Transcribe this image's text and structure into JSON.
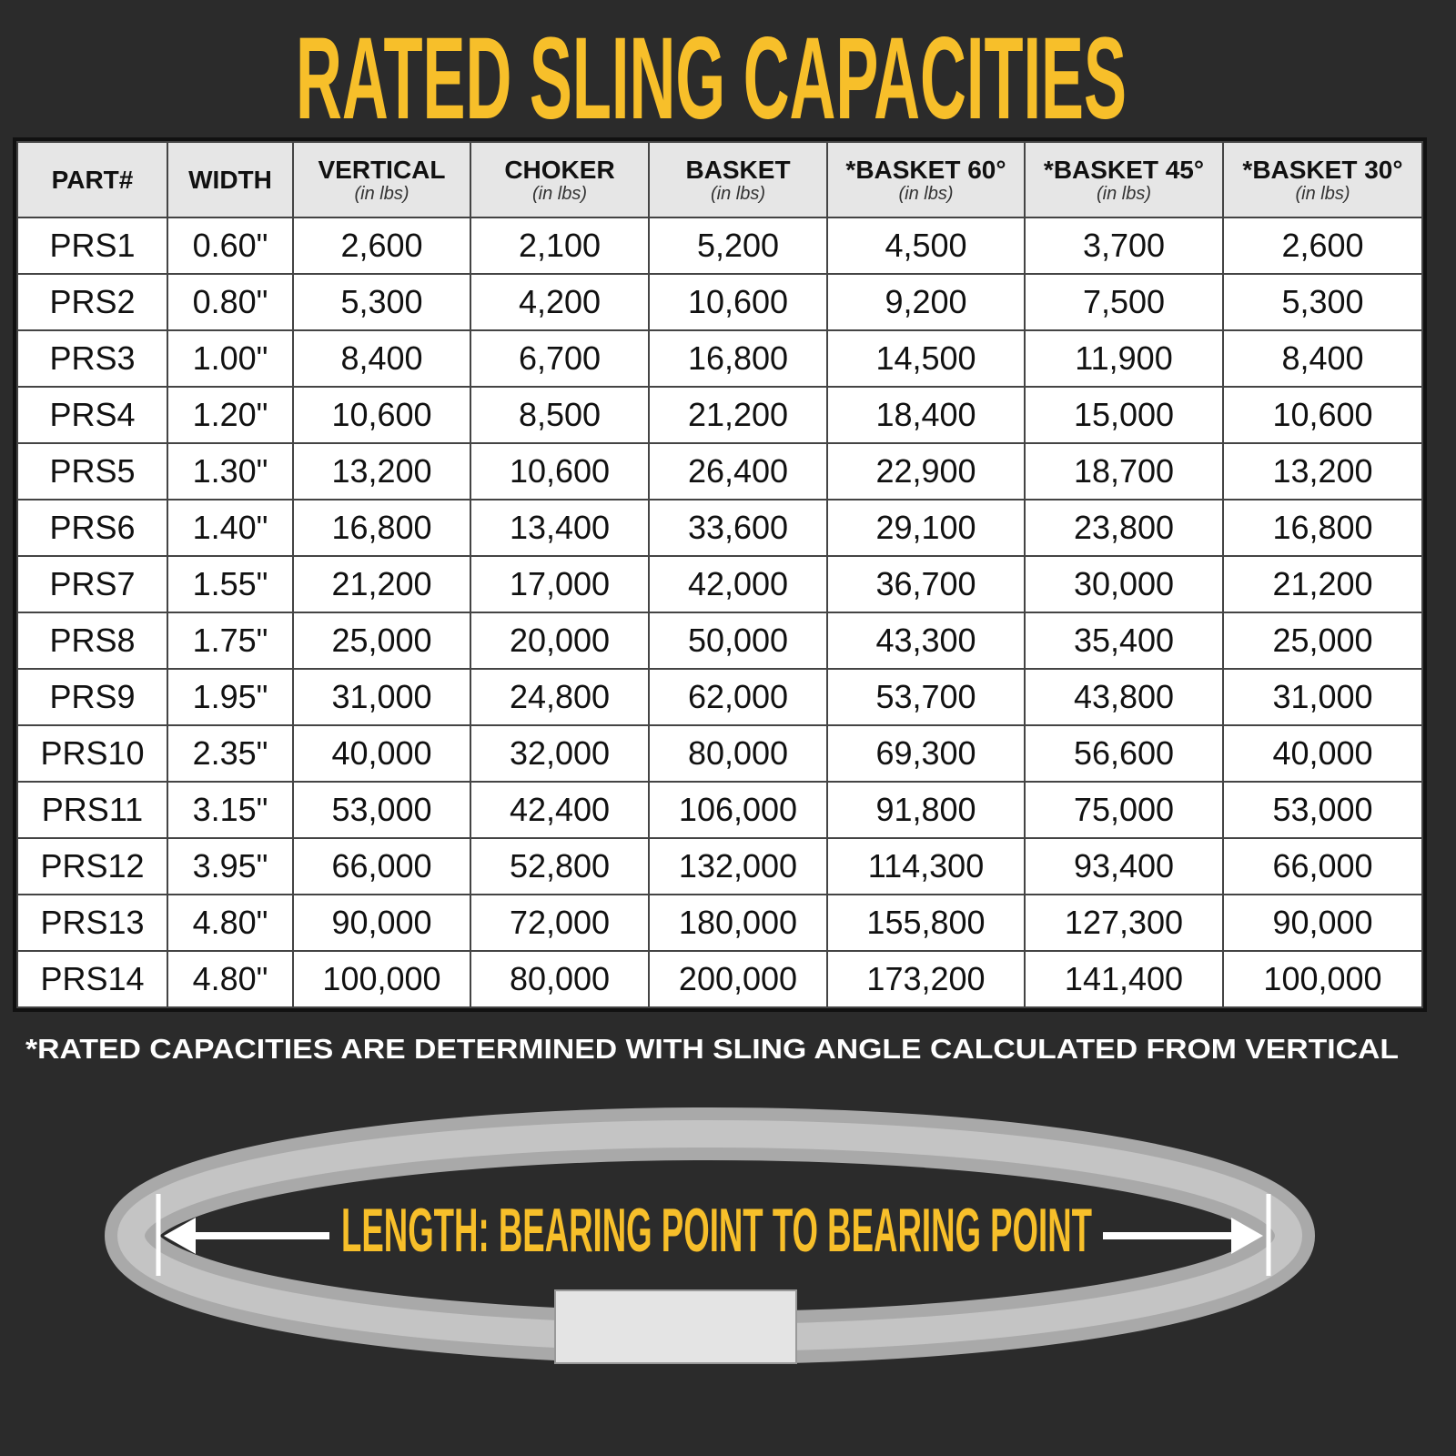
{
  "title": "RATED SLING CAPACITIES",
  "table": {
    "headers": [
      {
        "label": "PART#",
        "sub": ""
      },
      {
        "label": "WIDTH",
        "sub": ""
      },
      {
        "label": "VERTICAL",
        "sub": "(in lbs)"
      },
      {
        "label": "CHOKER",
        "sub": "(in lbs)"
      },
      {
        "label": "BASKET",
        "sub": "(in lbs)"
      },
      {
        "label": "*BASKET 60°",
        "sub": "(in lbs)"
      },
      {
        "label": "*BASKET 45°",
        "sub": "(in lbs)"
      },
      {
        "label": "*BASKET 30°",
        "sub": "(in lbs)"
      }
    ],
    "rows": [
      [
        "PRS1",
        "0.60\"",
        "2,600",
        "2,100",
        "5,200",
        "4,500",
        "3,700",
        "2,600"
      ],
      [
        "PRS2",
        "0.80\"",
        "5,300",
        "4,200",
        "10,600",
        "9,200",
        "7,500",
        "5,300"
      ],
      [
        "PRS3",
        "1.00\"",
        "8,400",
        "6,700",
        "16,800",
        "14,500",
        "11,900",
        "8,400"
      ],
      [
        "PRS4",
        "1.20\"",
        "10,600",
        "8,500",
        "21,200",
        "18,400",
        "15,000",
        "10,600"
      ],
      [
        "PRS5",
        "1.30\"",
        "13,200",
        "10,600",
        "26,400",
        "22,900",
        "18,700",
        "13,200"
      ],
      [
        "PRS6",
        "1.40\"",
        "16,800",
        "13,400",
        "33,600",
        "29,100",
        "23,800",
        "16,800"
      ],
      [
        "PRS7",
        "1.55\"",
        "21,200",
        "17,000",
        "42,000",
        "36,700",
        "30,000",
        "21,200"
      ],
      [
        "PRS8",
        "1.75\"",
        "25,000",
        "20,000",
        "50,000",
        "43,300",
        "35,400",
        "25,000"
      ],
      [
        "PRS9",
        "1.95\"",
        "31,000",
        "24,800",
        "62,000",
        "53,700",
        "43,800",
        "31,000"
      ],
      [
        "PRS10",
        "2.35\"",
        "40,000",
        "32,000",
        "80,000",
        "69,300",
        "56,600",
        "40,000"
      ],
      [
        "PRS11",
        "3.15\"",
        "53,000",
        "42,400",
        "106,000",
        "91,800",
        "75,000",
        "53,000"
      ],
      [
        "PRS12",
        "3.95\"",
        "66,000",
        "52,800",
        "132,000",
        "114,300",
        "93,400",
        "66,000"
      ],
      [
        "PRS13",
        "4.80\"",
        "90,000",
        "72,000",
        "180,000",
        "155,800",
        "127,300",
        "90,000"
      ],
      [
        "PRS14",
        "4.80\"",
        "100,000",
        "80,000",
        "200,000",
        "173,200",
        "141,400",
        "100,000"
      ]
    ]
  },
  "footnote": "*RATED CAPACITIES ARE DETERMINED WITH SLING ANGLE CALCULATED FROM VERTICAL",
  "sling_label": "LENGTH: BEARING POINT TO BEARING POINT",
  "colors": {
    "accent": "#f7bf2a",
    "background": "#2b2b2b",
    "header_bg": "#e6e6e6"
  }
}
